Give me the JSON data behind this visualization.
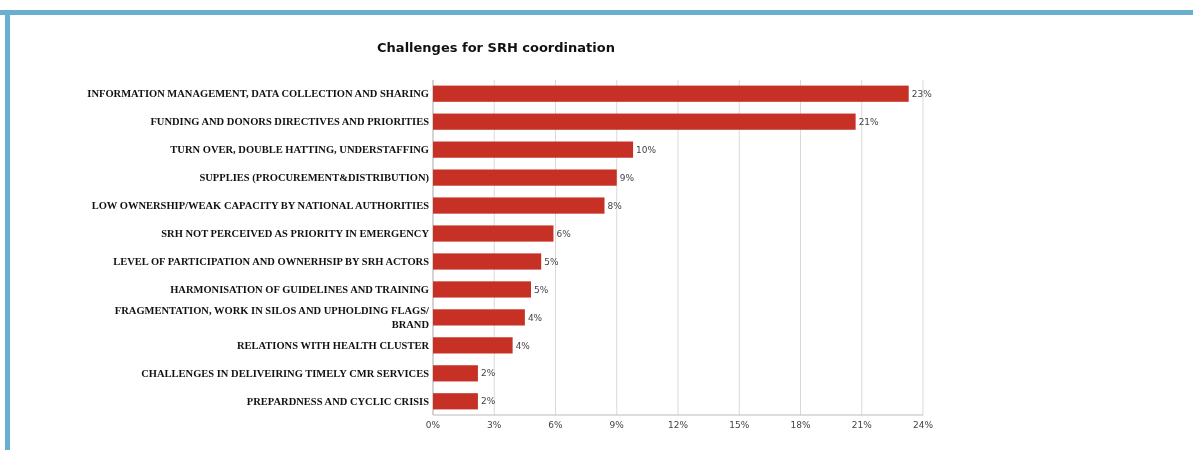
{
  "chart_data": {
    "type": "bar",
    "orientation": "horizontal",
    "title": "Challenges for SRH coordination",
    "categories": [
      "INFORMATION MANAGEMENT, DATA COLLECTION AND SHARING",
      "FUNDING AND DONORS DIRECTIVES AND PRIORITIES",
      "TURN OVER, DOUBLE HATTING, UNDERSTAFFING",
      "SUPPLIES (PROCUREMENT&DISTRIBUTION)",
      "LOW OWNERSHIP/WEAK CAPACITY BY NATIONAL AUTHORITIES",
      "SRH NOT PERCEIVED AS PRIORITY IN EMERGENCY",
      "LEVEL OF PARTICIPATION AND OWNERHSIP BY SRH ACTORS",
      "HARMONISATION OF GUIDELINES AND TRAINING",
      "FRAGMENTATION, WORK IN SILOS AND UPHOLDING FLAGS/ BRAND",
      "RELATIONS WITH HEALTH CLUSTER",
      "CHALLENGES IN DELIVEIRING TIMELY CMR SERVICES",
      "PREPARDNESS AND CYCLIC CRISIS"
    ],
    "values": [
      23.3,
      20.7,
      9.8,
      9.0,
      8.4,
      5.9,
      5.3,
      4.8,
      4.5,
      3.9,
      2.2,
      2.2
    ],
    "value_labels": [
      "23%",
      "21%",
      "10%",
      "9%",
      "8%",
      "6%",
      "5%",
      "5%",
      "4%",
      "4%",
      "2%",
      "2%"
    ],
    "color": "#c73125",
    "xlim": [
      0,
      24
    ],
    "xticks": [
      {
        "value": 0,
        "label": "0%"
      },
      {
        "value": 3,
        "label": "3%"
      },
      {
        "value": 6,
        "label": "6%"
      },
      {
        "value": 9,
        "label": "9%"
      },
      {
        "value": 12,
        "label": "12%"
      },
      {
        "value": 15,
        "label": "15%"
      },
      {
        "value": 18,
        "label": "18%"
      },
      {
        "value": 21,
        "label": "21%"
      },
      {
        "value": 24,
        "label": "24%"
      }
    ],
    "grid": "x"
  }
}
